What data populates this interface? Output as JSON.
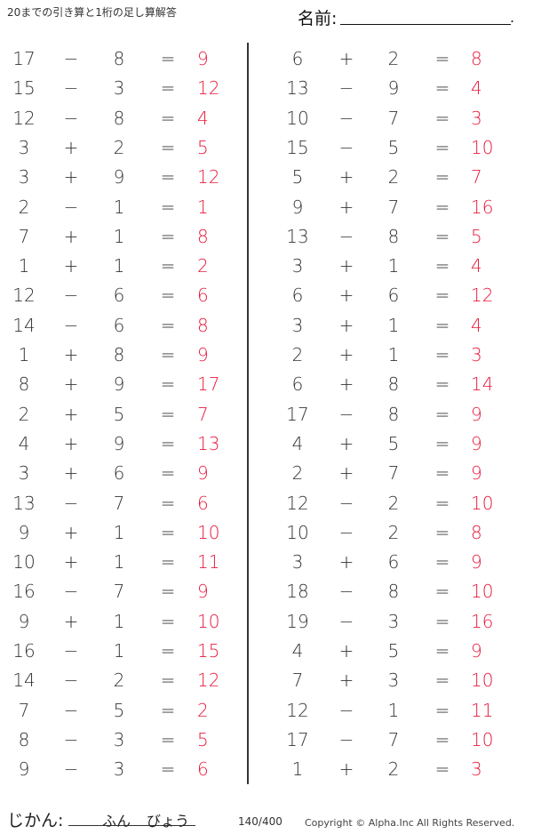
{
  "header": {
    "title": "20までの引き算と1桁の足し算解答",
    "name_label": "名前:",
    "name_end": "."
  },
  "colors": {
    "answer": "#e8193c"
  },
  "left_column": [
    {
      "a": "17",
      "op": "−",
      "b": "8",
      "eq": "=",
      "ans": "9"
    },
    {
      "a": "15",
      "op": "−",
      "b": "3",
      "eq": "=",
      "ans": "12"
    },
    {
      "a": "12",
      "op": "−",
      "b": "8",
      "eq": "=",
      "ans": "4"
    },
    {
      "a": "3",
      "op": "+",
      "b": "2",
      "eq": "=",
      "ans": "5"
    },
    {
      "a": "3",
      "op": "+",
      "b": "9",
      "eq": "=",
      "ans": "12"
    },
    {
      "a": "2",
      "op": "−",
      "b": "1",
      "eq": "=",
      "ans": "1"
    },
    {
      "a": "7",
      "op": "+",
      "b": "1",
      "eq": "=",
      "ans": "8"
    },
    {
      "a": "1",
      "op": "+",
      "b": "1",
      "eq": "=",
      "ans": "2"
    },
    {
      "a": "12",
      "op": "−",
      "b": "6",
      "eq": "=",
      "ans": "6"
    },
    {
      "a": "14",
      "op": "−",
      "b": "6",
      "eq": "=",
      "ans": "8"
    },
    {
      "a": "1",
      "op": "+",
      "b": "8",
      "eq": "=",
      "ans": "9"
    },
    {
      "a": "8",
      "op": "+",
      "b": "9",
      "eq": "=",
      "ans": "17"
    },
    {
      "a": "2",
      "op": "+",
      "b": "5",
      "eq": "=",
      "ans": "7"
    },
    {
      "a": "4",
      "op": "+",
      "b": "9",
      "eq": "=",
      "ans": "13"
    },
    {
      "a": "3",
      "op": "+",
      "b": "6",
      "eq": "=",
      "ans": "9"
    },
    {
      "a": "13",
      "op": "−",
      "b": "7",
      "eq": "=",
      "ans": "6"
    },
    {
      "a": "9",
      "op": "+",
      "b": "1",
      "eq": "=",
      "ans": "10"
    },
    {
      "a": "10",
      "op": "+",
      "b": "1",
      "eq": "=",
      "ans": "11"
    },
    {
      "a": "16",
      "op": "−",
      "b": "7",
      "eq": "=",
      "ans": "9"
    },
    {
      "a": "9",
      "op": "+",
      "b": "1",
      "eq": "=",
      "ans": "10"
    },
    {
      "a": "16",
      "op": "−",
      "b": "1",
      "eq": "=",
      "ans": "15"
    },
    {
      "a": "14",
      "op": "−",
      "b": "2",
      "eq": "=",
      "ans": "12"
    },
    {
      "a": "7",
      "op": "−",
      "b": "5",
      "eq": "=",
      "ans": "2"
    },
    {
      "a": "8",
      "op": "−",
      "b": "3",
      "eq": "=",
      "ans": "5"
    },
    {
      "a": "9",
      "op": "−",
      "b": "3",
      "eq": "=",
      "ans": "6"
    }
  ],
  "right_column": [
    {
      "a": "6",
      "op": "+",
      "b": "2",
      "eq": "=",
      "ans": "8"
    },
    {
      "a": "13",
      "op": "−",
      "b": "9",
      "eq": "=",
      "ans": "4"
    },
    {
      "a": "10",
      "op": "−",
      "b": "7",
      "eq": "=",
      "ans": "3"
    },
    {
      "a": "15",
      "op": "−",
      "b": "5",
      "eq": "=",
      "ans": "10"
    },
    {
      "a": "5",
      "op": "+",
      "b": "2",
      "eq": "=",
      "ans": "7"
    },
    {
      "a": "9",
      "op": "+",
      "b": "7",
      "eq": "=",
      "ans": "16"
    },
    {
      "a": "13",
      "op": "−",
      "b": "8",
      "eq": "=",
      "ans": "5"
    },
    {
      "a": "3",
      "op": "+",
      "b": "1",
      "eq": "=",
      "ans": "4"
    },
    {
      "a": "6",
      "op": "+",
      "b": "6",
      "eq": "=",
      "ans": "12"
    },
    {
      "a": "3",
      "op": "+",
      "b": "1",
      "eq": "=",
      "ans": "4"
    },
    {
      "a": "2",
      "op": "+",
      "b": "1",
      "eq": "=",
      "ans": "3"
    },
    {
      "a": "6",
      "op": "+",
      "b": "8",
      "eq": "=",
      "ans": "14"
    },
    {
      "a": "17",
      "op": "−",
      "b": "8",
      "eq": "=",
      "ans": "9"
    },
    {
      "a": "4",
      "op": "+",
      "b": "5",
      "eq": "=",
      "ans": "9"
    },
    {
      "a": "2",
      "op": "+",
      "b": "7",
      "eq": "=",
      "ans": "9"
    },
    {
      "a": "12",
      "op": "−",
      "b": "2",
      "eq": "=",
      "ans": "10"
    },
    {
      "a": "10",
      "op": "−",
      "b": "2",
      "eq": "=",
      "ans": "8"
    },
    {
      "a": "3",
      "op": "+",
      "b": "6",
      "eq": "=",
      "ans": "9"
    },
    {
      "a": "18",
      "op": "−",
      "b": "8",
      "eq": "=",
      "ans": "10"
    },
    {
      "a": "19",
      "op": "−",
      "b": "3",
      "eq": "=",
      "ans": "16"
    },
    {
      "a": "4",
      "op": "+",
      "b": "5",
      "eq": "=",
      "ans": "9"
    },
    {
      "a": "7",
      "op": "+",
      "b": "3",
      "eq": "=",
      "ans": "10"
    },
    {
      "a": "12",
      "op": "−",
      "b": "1",
      "eq": "=",
      "ans": "11"
    },
    {
      "a": "17",
      "op": "−",
      "b": "7",
      "eq": "=",
      "ans": "10"
    },
    {
      "a": "1",
      "op": "+",
      "b": "2",
      "eq": "=",
      "ans": "3"
    }
  ],
  "footer": {
    "time_label": "じかん:",
    "minutes": "ふん",
    "seconds": "びょう",
    "progress": "140/400",
    "copyright": "Copyright ©  Alpha.Inc All Rights Reserved."
  }
}
